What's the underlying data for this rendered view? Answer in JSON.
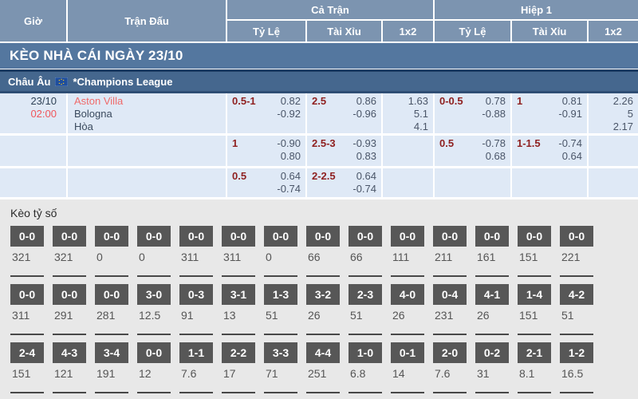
{
  "colors": {
    "header_bg": "#7c94b0",
    "banner_bg": "#54779f",
    "league_bg": "#45678e",
    "row_bg": "#dfe9f6",
    "handicap_maroon": "#8f2121",
    "odds_text": "#4a5568",
    "accent_red": "#f0565b",
    "score_section_bg": "#e8e8e8",
    "score_box_bg": "#575757"
  },
  "header": {
    "time": "Giờ",
    "match": "Trận Đấu",
    "full_match": "Cả Trận",
    "first_half": "Hiệp 1",
    "odds": "Tỷ Lệ",
    "over_under": "Tài Xỉu",
    "one_x_two": "1x2"
  },
  "banner": {
    "title": "KÈO NHÀ CÁI NGÀY 23/10"
  },
  "league": {
    "region": "Châu Âu",
    "name": "*Champions League"
  },
  "match": {
    "date": "23/10",
    "time": "02:00",
    "home": "Aston Villa",
    "away": "Bologna",
    "draw": "Hòa"
  },
  "odds_rows": [
    {
      "ft_hdp": {
        "line": "0.5-1",
        "o1": "0.82",
        "o2": "-0.92"
      },
      "ft_ou": {
        "line": "2.5",
        "o1": "0.86",
        "o2": "-0.96"
      },
      "ft_1x2": {
        "o1": "1.63",
        "o2": "5.1",
        "o3": "4.1"
      },
      "h1_hdp": {
        "line": "0-0.5",
        "o1": "0.78",
        "o2": "-0.88"
      },
      "h1_ou": {
        "line": "1",
        "o1": "0.81",
        "o2": "-0.91"
      },
      "h1_1x2": {
        "o1": "2.26",
        "o2": "5",
        "o3": "2.17"
      }
    },
    {
      "ft_hdp": {
        "line": "1",
        "o1": "-0.90",
        "o2": "0.80"
      },
      "ft_ou": {
        "line": "2.5-3",
        "o1": "-0.93",
        "o2": "0.83"
      },
      "ft_1x2": {},
      "h1_hdp": {
        "line": "0.5",
        "o1": "-0.78",
        "o2": "0.68"
      },
      "h1_ou": {
        "line": "1-1.5",
        "o1": "-0.74",
        "o2": "0.64"
      },
      "h1_1x2": {}
    },
    {
      "ft_hdp": {
        "line": "0.5",
        "o1": "0.64",
        "o2": "-0.74"
      },
      "ft_ou": {
        "line": "2-2.5",
        "o1": "0.64",
        "o2": "-0.74"
      },
      "ft_1x2": {},
      "h1_hdp": {},
      "h1_ou": {},
      "h1_1x2": {}
    }
  ],
  "correct_score": {
    "title": "Kèo tỷ số",
    "rows": [
      {
        "cells": [
          [
            "0-0",
            "321"
          ],
          [
            "0-0",
            "321"
          ],
          [
            "0-0",
            "0"
          ],
          [
            "0-0",
            "0"
          ],
          [
            "0-0",
            "311"
          ],
          [
            "0-0",
            "311"
          ],
          [
            "0-0",
            "0"
          ],
          [
            "0-0",
            "66"
          ],
          [
            "0-0",
            "66"
          ],
          [
            "0-0",
            "111"
          ],
          [
            "0-0",
            "211"
          ],
          [
            "0-0",
            "161"
          ],
          [
            "0-0",
            "151"
          ],
          [
            "0-0",
            "221"
          ]
        ]
      },
      {
        "cells": [
          [
            "0-0",
            "311"
          ],
          [
            "0-0",
            "291"
          ],
          [
            "0-0",
            "281"
          ],
          [
            "3-0",
            "12.5"
          ],
          [
            "0-3",
            "91"
          ],
          [
            "3-1",
            "13"
          ],
          [
            "1-3",
            "51"
          ],
          [
            "3-2",
            "26"
          ],
          [
            "2-3",
            "51"
          ],
          [
            "4-0",
            "26"
          ],
          [
            "0-4",
            "231"
          ],
          [
            "4-1",
            "26"
          ],
          [
            "1-4",
            "151"
          ],
          [
            "4-2",
            "51"
          ]
        ]
      },
      {
        "cells": [
          [
            "2-4",
            "151"
          ],
          [
            "4-3",
            "121"
          ],
          [
            "3-4",
            "191"
          ],
          [
            "0-0",
            "12"
          ],
          [
            "1-1",
            "7.6"
          ],
          [
            "2-2",
            "17"
          ],
          [
            "3-3",
            "71"
          ],
          [
            "4-4",
            "251"
          ],
          [
            "1-0",
            "6.8"
          ],
          [
            "0-1",
            "14"
          ],
          [
            "2-0",
            "7.6"
          ],
          [
            "0-2",
            "31"
          ],
          [
            "2-1",
            "8.1"
          ],
          [
            "1-2",
            "16.5"
          ]
        ]
      }
    ]
  }
}
